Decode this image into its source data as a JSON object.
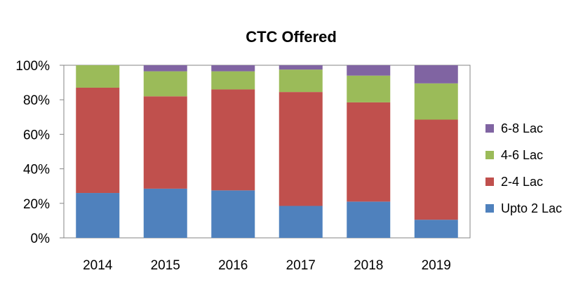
{
  "chart_data": {
    "type": "bar",
    "stacked": true,
    "title": "CTC Offered",
    "categories": [
      "2014",
      "2015",
      "2016",
      "2017",
      "2018",
      "2019"
    ],
    "series": [
      {
        "name": "Upto 2 Lac",
        "color": "#4f81bd",
        "values": [
          26,
          28.5,
          27.5,
          18.5,
          21,
          10.5
        ]
      },
      {
        "name": "2-4 Lac",
        "color": "#c0504d",
        "values": [
          61,
          53.5,
          58.5,
          66,
          57.5,
          58
        ]
      },
      {
        "name": "4-6 Lac",
        "color": "#9bbb59",
        "values": [
          13,
          14.5,
          10.5,
          13,
          15.5,
          21
        ]
      },
      {
        "name": "6-8 Lac",
        "color": "#8064a2",
        "values": [
          0,
          3.5,
          3.5,
          2.5,
          6,
          10.5
        ]
      }
    ],
    "ylim": [
      0,
      100
    ],
    "yticks": [
      "0%",
      "20%",
      "40%",
      "60%",
      "80%",
      "100%"
    ],
    "grid": false,
    "legend": "right"
  }
}
